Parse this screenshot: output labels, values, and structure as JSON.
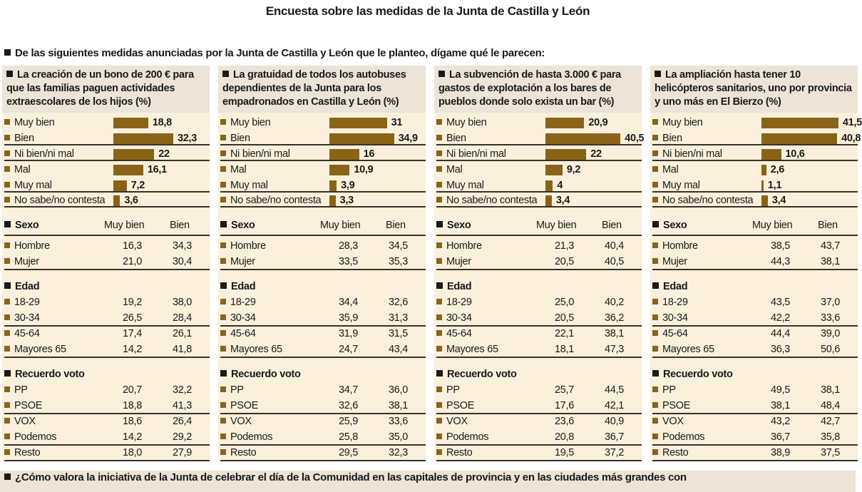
{
  "title": "Encuesta sobre las medidas de la Junta de Castilla y León",
  "question": "De las siguientes medidas anunciadas por la Junta de Castilla y León que le planteo, dígame qué le parecen:",
  "bottom_question": "¿Cómo valora la iniciativa de la Junta de celebrar el día de la Comunidad en las capitales de provincia y en las ciudades más grandes con",
  "colors": {
    "bar": "#8b6318",
    "panel_bg": "#faf0dc",
    "header_bg": "#ede3d6"
  },
  "col_headers": {
    "muy_bien": "Muy bien",
    "bien": "Bien"
  },
  "section_titles": [
    "Sexo",
    "Edad",
    "Recuerdo voto"
  ],
  "chart_data": [
    {
      "type": "bar",
      "title": "La creación de un bono de 200 € para que las familias paguen actividades extraescolares de los hijos (%)",
      "categories": [
        "Muy bien",
        "Bien",
        "Ni bien/ni mal",
        "Mal",
        "Muy mal",
        "No sabe/no contesta"
      ],
      "values": [
        18.8,
        32.3,
        22,
        16.1,
        7.2,
        3.6
      ],
      "labels": [
        "18,8",
        "32,3",
        "22",
        "16,1",
        "7,2",
        "3,6"
      ],
      "breakdown": [
        {
          "title": "Sexo",
          "rows": [
            [
              "Hombre",
              "16,3",
              "34,3"
            ],
            [
              "Mujer",
              "21,0",
              "30,4"
            ]
          ]
        },
        {
          "title": "Edad",
          "rows": [
            [
              "18-29",
              "19,2",
              "38,0"
            ],
            [
              "30-34",
              "26,5",
              "28,4"
            ],
            [
              "45-64",
              "17,4",
              "26,1"
            ],
            [
              "Mayores 65",
              "14,2",
              "41,8"
            ]
          ]
        },
        {
          "title": "Recuerdo voto",
          "rows": [
            [
              "PP",
              "20,7",
              "32,2"
            ],
            [
              "PSOE",
              "18,8",
              "41,3"
            ],
            [
              "VOX",
              "18,6",
              "26,4"
            ],
            [
              "Podemos",
              "14,2",
              "29,2"
            ],
            [
              "Resto",
              "18,0",
              "27,9"
            ]
          ]
        }
      ]
    },
    {
      "type": "bar",
      "title": "La gratuidad de todos los autobuses dependientes de la Junta para los empadronados en Castilla y León (%)",
      "categories": [
        "Muy bien",
        "Bien",
        "Ni bien/ni mal",
        "Mal",
        "Muy mal",
        "No sabe/no contesta"
      ],
      "values": [
        31,
        34.9,
        16,
        10.9,
        3.9,
        3.3
      ],
      "labels": [
        "31",
        "34,9",
        "16",
        "10,9",
        "3,9",
        "3,3"
      ],
      "breakdown": [
        {
          "title": "Sexo",
          "rows": [
            [
              "Hombre",
              "28,3",
              "34,5"
            ],
            [
              "Mujer",
              "33,5",
              "35,3"
            ]
          ]
        },
        {
          "title": "Edad",
          "rows": [
            [
              "18-29",
              "34,4",
              "32,6"
            ],
            [
              "30-34",
              "35,9",
              "31,3"
            ],
            [
              "45-64",
              "31,9",
              "31,5"
            ],
            [
              "Mayores 65",
              "24,7",
              "43,4"
            ]
          ]
        },
        {
          "title": "Recuerdo voto",
          "rows": [
            [
              "PP",
              "34,7",
              "36,0"
            ],
            [
              "PSOE",
              "32,6",
              "38,1"
            ],
            [
              "VOX",
              "25,9",
              "33,6"
            ],
            [
              "Podemos",
              "25,8",
              "35,0"
            ],
            [
              "Resto",
              "29,5",
              "32,3"
            ]
          ]
        }
      ]
    },
    {
      "type": "bar",
      "title": "La subvención de hasta 3.000 € para gastos de explotación a los bares de pueblos donde solo exista un bar (%)",
      "categories": [
        "Muy bien",
        "Bien",
        "Ni bien/ni mal",
        "Mal",
        "Muy mal",
        "No sabe/no contesta"
      ],
      "values": [
        20.9,
        40.5,
        22,
        9.2,
        4,
        3.4
      ],
      "labels": [
        "20,9",
        "40,5",
        "22",
        "9,2",
        "4",
        "3,4"
      ],
      "breakdown": [
        {
          "title": "Sexo",
          "rows": [
            [
              "Hombre",
              "21,3",
              "40,4"
            ],
            [
              "Mujer",
              "20,5",
              "40,5"
            ]
          ]
        },
        {
          "title": "Edad",
          "rows": [
            [
              "18-29",
              "25,0",
              "40,2"
            ],
            [
              "30-34",
              "20,5",
              "36,2"
            ],
            [
              "45-64",
              "22,1",
              "38,1"
            ],
            [
              "Mayores 65",
              "18,1",
              "47,3"
            ]
          ]
        },
        {
          "title": "Recuerdo voto",
          "rows": [
            [
              "PP",
              "25,7",
              "44,5"
            ],
            [
              "PSOE",
              "17,6",
              "42,1"
            ],
            [
              "VOX",
              "23,6",
              "40,9"
            ],
            [
              "Podemos",
              "20,8",
              "36,7"
            ],
            [
              "Resto",
              "19,5",
              "37,2"
            ]
          ]
        }
      ]
    },
    {
      "type": "bar",
      "title": "La ampliación hasta tener 10 helicópteros sanitarios, uno por provincia y uno más en El Bierzo (%)",
      "categories": [
        "Muy bien",
        "Bien",
        "Ni bien/ni mal",
        "Mal",
        "Muy mal",
        "No sabe/no contesta"
      ],
      "values": [
        41.5,
        40.8,
        10.6,
        2.6,
        1.1,
        3.4
      ],
      "labels": [
        "41,5",
        "40,8",
        "10,6",
        "2,6",
        "1,1",
        "3,4"
      ],
      "breakdown": [
        {
          "title": "Sexo",
          "rows": [
            [
              "Hombre",
              "38,5",
              "43,7"
            ],
            [
              "Mujer",
              "44,3",
              "38,1"
            ]
          ]
        },
        {
          "title": "Edad",
          "rows": [
            [
              "18-29",
              "43,5",
              "37,0"
            ],
            [
              "30-34",
              "42,2",
              "33,6"
            ],
            [
              "45-64",
              "44,4",
              "39,0"
            ],
            [
              "Mayores 65",
              "36,3",
              "50,6"
            ]
          ]
        },
        {
          "title": "Recuerdo voto",
          "rows": [
            [
              "PP",
              "49,5",
              "38,1"
            ],
            [
              "PSOE",
              "38,1",
              "48,4"
            ],
            [
              "VOX",
              "43,2",
              "42,7"
            ],
            [
              "Podemos",
              "36,7",
              "35,8"
            ],
            [
              "Resto",
              "38,9",
              "37,5"
            ]
          ]
        }
      ]
    }
  ]
}
